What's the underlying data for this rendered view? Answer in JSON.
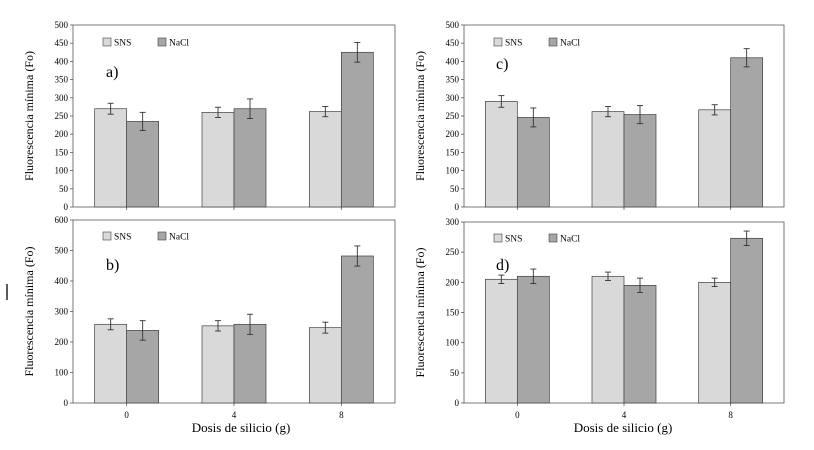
{
  "colors": {
    "sns": "#d9d9d9",
    "nacl": "#a6a6a6",
    "stroke": "#404040",
    "axis": "#595959"
  },
  "x_axis_title": "Dosis de silicio  (g)",
  "chart_data": [
    {
      "panel": "a)",
      "type": "bar",
      "categories": [
        "0",
        "4",
        "8"
      ],
      "ylabel": "Fluorescencia mínima (Fo)",
      "ylim": [
        0,
        500
      ],
      "ystep": 50,
      "yticks": [
        "0",
        "50",
        "100",
        "150",
        "200",
        "250",
        "300",
        "350",
        "400",
        "450",
        "500"
      ],
      "legend": "top-left",
      "series": [
        {
          "name": "SNS",
          "values": [
            270,
            260,
            262
          ],
          "errors": [
            15,
            14,
            14
          ]
        },
        {
          "name": "NaCl",
          "values": [
            235,
            270,
            425
          ],
          "errors": [
            25,
            27,
            27
          ]
        }
      ]
    },
    {
      "panel": "b)",
      "type": "bar",
      "categories": [
        "0",
        "4",
        "8"
      ],
      "ylabel": "Fluorescencia mínima (Fo)",
      "ylim": [
        0,
        600
      ],
      "ystep": 100,
      "yticks": [
        "0",
        "100",
        "200",
        "300",
        "400",
        "500",
        "600"
      ],
      "legend": "top-left",
      "series": [
        {
          "name": "SNS",
          "values": [
            258,
            253,
            247
          ],
          "errors": [
            18,
            17,
            18
          ]
        },
        {
          "name": "NaCl",
          "values": [
            238,
            258,
            482
          ],
          "errors": [
            32,
            33,
            33
          ]
        }
      ]
    },
    {
      "panel": "c)",
      "type": "bar",
      "categories": [
        "0",
        "4",
        "8"
      ],
      "ylabel": "Fluorescencia mínima (Fo)",
      "ylim": [
        0,
        500
      ],
      "ystep": 50,
      "yticks": [
        "0",
        "50",
        "100",
        "150",
        "200",
        "250",
        "300",
        "350",
        "400",
        "450",
        "500"
      ],
      "legend": "top-left",
      "series": [
        {
          "name": "SNS",
          "values": [
            290,
            262,
            267
          ],
          "errors": [
            16,
            14,
            14
          ]
        },
        {
          "name": "NaCl",
          "values": [
            246,
            254,
            410
          ],
          "errors": [
            26,
            25,
            25
          ]
        }
      ]
    },
    {
      "panel": "d)",
      "type": "bar",
      "categories": [
        "0",
        "4",
        "8"
      ],
      "ylabel": "Fluorescencia mínima (Fo)",
      "ylim": [
        0,
        300
      ],
      "ystep": 50,
      "yticks": [
        "0",
        "50",
        "100",
        "150",
        "200",
        "250",
        "300"
      ],
      "legend": "top-left",
      "series": [
        {
          "name": "SNS",
          "values": [
            205,
            210,
            200
          ],
          "errors": [
            7,
            7,
            7
          ]
        },
        {
          "name": "NaCl",
          "values": [
            210,
            195,
            273
          ],
          "errors": [
            12,
            12,
            12
          ]
        }
      ]
    }
  ]
}
